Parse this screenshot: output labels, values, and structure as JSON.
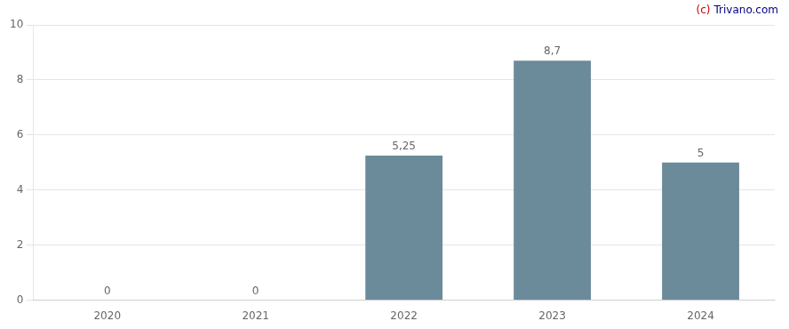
{
  "chart_data": {
    "type": "bar",
    "categories": [
      "2020",
      "2021",
      "2022",
      "2023",
      "2024"
    ],
    "values": [
      0,
      0,
      5.25,
      8.7,
      5
    ],
    "value_labels": [
      "0",
      "0",
      "5,25",
      "8,7",
      "5"
    ],
    "data_labels": true,
    "color": "#6b8a9a",
    "ylim": [
      0,
      10
    ],
    "yticks": [
      0,
      2,
      4,
      6,
      8,
      10
    ],
    "grid": true,
    "annotations": [
      {
        "text": "(c)",
        "color": "#cc0000"
      },
      {
        "text": "Trivano.com",
        "color": "#000080"
      }
    ]
  }
}
